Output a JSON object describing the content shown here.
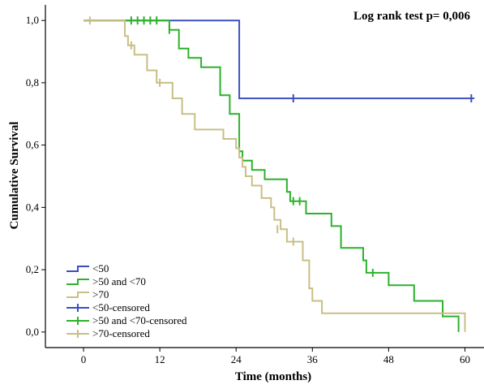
{
  "chart_data": {
    "type": "line",
    "subtype": "kaplan-meier step",
    "title": "",
    "annotation": "Log rank test p= 0,006",
    "xlabel": "Time (months)",
    "ylabel": "Cumulative Survival",
    "xlim": [
      -6,
      63
    ],
    "ylim": [
      -0.05,
      1.05
    ],
    "x_ticks": [
      0,
      12,
      24,
      36,
      48,
      60
    ],
    "y_ticks": [
      0.0,
      0.2,
      0.4,
      0.6,
      0.8,
      1.0
    ],
    "y_tick_labels": [
      "0,0",
      "0,2",
      "0,4",
      "0,6",
      "0,8",
      "1,0"
    ],
    "grid": false,
    "legend_position": "bottom-left",
    "legend": [
      "<50",
      ">50 and <70",
      ">70",
      "<50-censored",
      ">50 and <70-censored",
      ">70-censored"
    ],
    "series": [
      {
        "name": "<50",
        "color": "#3a4fbf",
        "steps": [
          [
            0,
            1.0
          ],
          [
            24.5,
            1.0
          ],
          [
            24.5,
            0.75
          ],
          [
            61.5,
            0.75
          ]
        ],
        "censored": [
          [
            33,
            0.75
          ],
          [
            61,
            0.75
          ]
        ]
      },
      {
        "name": ">50 and <70",
        "color": "#2cb22c",
        "steps": [
          [
            0,
            1.0
          ],
          [
            13.5,
            1.0
          ],
          [
            13.5,
            0.97
          ],
          [
            15,
            0.97
          ],
          [
            15,
            0.91
          ],
          [
            16.5,
            0.91
          ],
          [
            16.5,
            0.88
          ],
          [
            18.5,
            0.88
          ],
          [
            18.5,
            0.85
          ],
          [
            21.5,
            0.85
          ],
          [
            21.5,
            0.76
          ],
          [
            23,
            0.76
          ],
          [
            23,
            0.7
          ],
          [
            24.5,
            0.7
          ],
          [
            24.5,
            0.58
          ],
          [
            25,
            0.58
          ],
          [
            25,
            0.55
          ],
          [
            26.5,
            0.55
          ],
          [
            26.5,
            0.52
          ],
          [
            28.5,
            0.52
          ],
          [
            28.5,
            0.49
          ],
          [
            32,
            0.49
          ],
          [
            32,
            0.45
          ],
          [
            32.5,
            0.45
          ],
          [
            32.5,
            0.42
          ],
          [
            35,
            0.42
          ],
          [
            35,
            0.38
          ],
          [
            39,
            0.38
          ],
          [
            39,
            0.34
          ],
          [
            40.5,
            0.34
          ],
          [
            40.5,
            0.27
          ],
          [
            44,
            0.27
          ],
          [
            44,
            0.23
          ],
          [
            44.5,
            0.23
          ],
          [
            44.5,
            0.19
          ],
          [
            48,
            0.19
          ],
          [
            48,
            0.15
          ],
          [
            52,
            0.15
          ],
          [
            52,
            0.1
          ],
          [
            56.5,
            0.1
          ],
          [
            56.5,
            0.05
          ],
          [
            59,
            0.05
          ],
          [
            59,
            0.0
          ]
        ],
        "censored": [
          [
            7.5,
            1.0
          ],
          [
            8.5,
            1.0
          ],
          [
            9.5,
            1.0
          ],
          [
            10.5,
            1.0
          ],
          [
            11.5,
            1.0
          ],
          [
            13.5,
            0.97
          ],
          [
            33,
            0.42
          ],
          [
            34,
            0.42
          ],
          [
            45.5,
            0.19
          ]
        ]
      },
      {
        "name": ">70",
        "color": "#c8bf85",
        "steps": [
          [
            0,
            1.0
          ],
          [
            6.5,
            1.0
          ],
          [
            6.5,
            0.95
          ],
          [
            7,
            0.95
          ],
          [
            7,
            0.92
          ],
          [
            8,
            0.92
          ],
          [
            8,
            0.89
          ],
          [
            10,
            0.89
          ],
          [
            10,
            0.84
          ],
          [
            11.5,
            0.84
          ],
          [
            11.5,
            0.8
          ],
          [
            14,
            0.8
          ],
          [
            14,
            0.75
          ],
          [
            15.5,
            0.75
          ],
          [
            15.5,
            0.7
          ],
          [
            17.5,
            0.7
          ],
          [
            17.5,
            0.65
          ],
          [
            22,
            0.65
          ],
          [
            22,
            0.62
          ],
          [
            24,
            0.62
          ],
          [
            24,
            0.59
          ],
          [
            24.5,
            0.59
          ],
          [
            24.5,
            0.56
          ],
          [
            25,
            0.56
          ],
          [
            25,
            0.53
          ],
          [
            25.5,
            0.53
          ],
          [
            25.5,
            0.5
          ],
          [
            26.5,
            0.5
          ],
          [
            26.5,
            0.47
          ],
          [
            28,
            0.47
          ],
          [
            28,
            0.43
          ],
          [
            29.5,
            0.43
          ],
          [
            29.5,
            0.4
          ],
          [
            30,
            0.4
          ],
          [
            30,
            0.36
          ],
          [
            31,
            0.36
          ],
          [
            31,
            0.33
          ],
          [
            32,
            0.33
          ],
          [
            32,
            0.29
          ],
          [
            34.5,
            0.29
          ],
          [
            34.5,
            0.23
          ],
          [
            35.5,
            0.23
          ],
          [
            35.5,
            0.14
          ],
          [
            36,
            0.14
          ],
          [
            36,
            0.1
          ],
          [
            37.5,
            0.1
          ],
          [
            37.5,
            0.06
          ],
          [
            60,
            0.06
          ],
          [
            60,
            0.0
          ]
        ],
        "censored": [
          [
            1,
            1.0
          ],
          [
            7.5,
            0.92
          ],
          [
            12,
            0.8
          ],
          [
            30.5,
            0.33
          ],
          [
            33,
            0.29
          ]
        ]
      }
    ]
  }
}
